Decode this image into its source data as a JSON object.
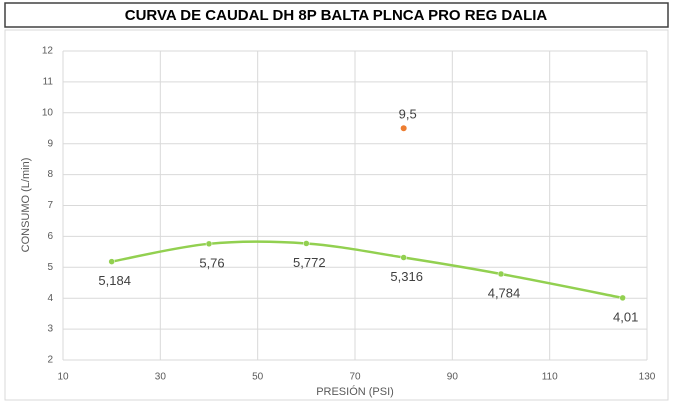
{
  "chart_data": {
    "type": "scatter",
    "title": "CURVA DE CAUDAL DH 8P BALTA PLNCA PRO REG DALIA",
    "x_label": "PRESIÓN (PSI)",
    "y_label": "CONSUMO (L/min)",
    "series": [
      {
        "color": "#92d050",
        "line": "smooth",
        "x": [
          20,
          40,
          60,
          80,
          100,
          125
        ],
        "values": [
          5.184,
          5.76,
          5.772,
          5.316,
          4.784,
          4.01
        ],
        "value_labels": [
          "5,184",
          "5,76",
          "5,772",
          "5,316",
          "4,784",
          "4,01"
        ]
      },
      {
        "color": "#ed7d31",
        "x": [
          80
        ],
        "values": [
          9.5
        ],
        "value_labels": [
          "9,5"
        ]
      }
    ],
    "xlim": [
      10,
      130
    ],
    "xticks": [
      10,
      30,
      50,
      70,
      90,
      110,
      130
    ],
    "ylim": [
      2,
      12
    ],
    "yticks": [
      2,
      3,
      4,
      5,
      6,
      7,
      8,
      9,
      10,
      11,
      12
    ],
    "grid": true
  }
}
